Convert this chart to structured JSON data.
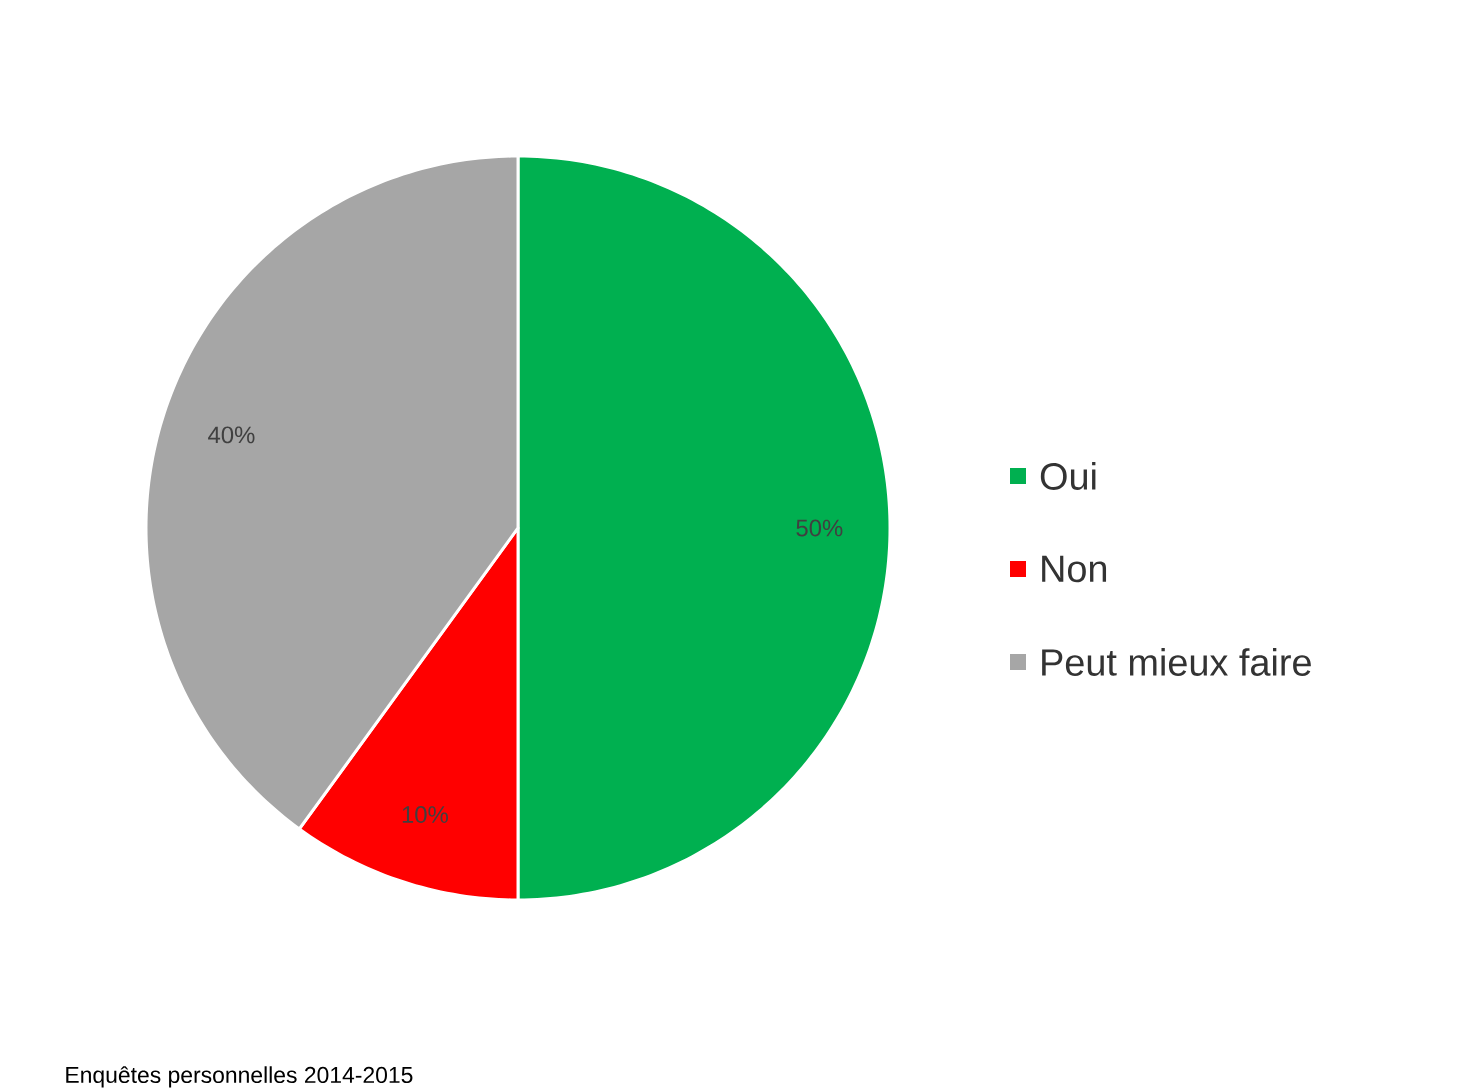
{
  "chart_data": {
    "type": "pie",
    "categories": [
      "Oui",
      "Non",
      "Peut mieux faire"
    ],
    "values": [
      50,
      10,
      40
    ],
    "value_labels": [
      "50%",
      "10%",
      "40%"
    ],
    "colors": [
      "#00b050",
      "#ff0000",
      "#a6a6a6"
    ],
    "legend": "right",
    "annotations": [
      "Enquêtes personnelles 2014-2015"
    ]
  }
}
